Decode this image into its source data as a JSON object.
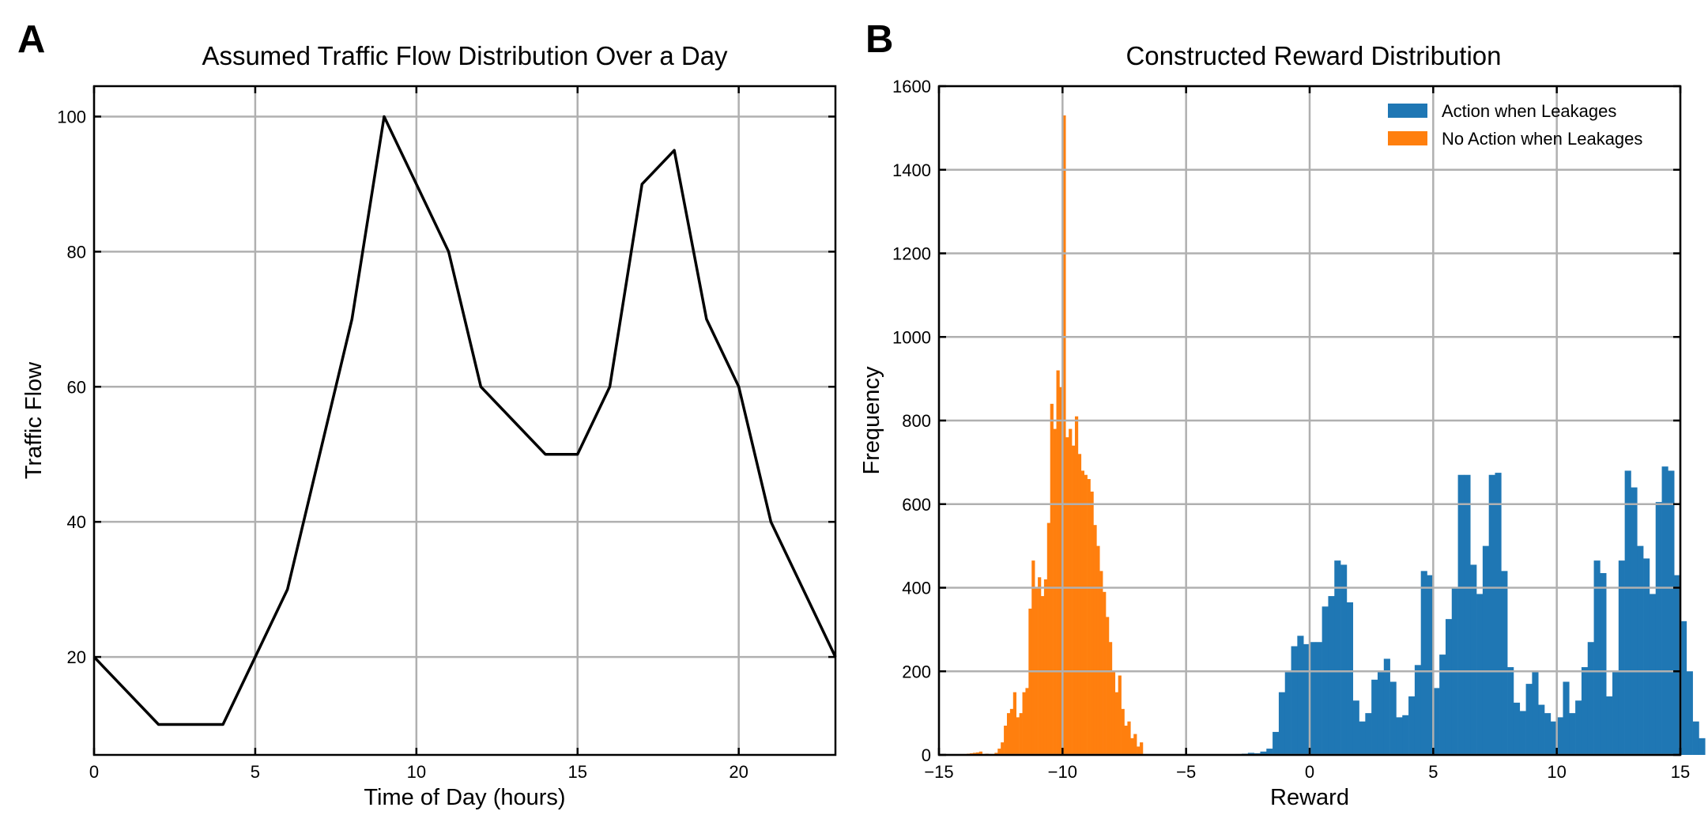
{
  "chart_data": [
    {
      "panel": "A",
      "type": "line",
      "title": "Assumed Traffic Flow Distribution Over a Day",
      "xlabel": "Time of Day (hours)",
      "ylabel": "Traffic Flow",
      "xlim": [
        0,
        23
      ],
      "ylim": [
        5.5,
        104.5
      ],
      "xticks": [
        0,
        5,
        10,
        15,
        20
      ],
      "yticks": [
        20,
        40,
        60,
        80,
        100
      ],
      "grid": true,
      "line_color": "#000000",
      "x": [
        0,
        1,
        2,
        3,
        4,
        5,
        6,
        7,
        8,
        9,
        10,
        11,
        12,
        13,
        14,
        15,
        16,
        17,
        18,
        19,
        20,
        21,
        22,
        23
      ],
      "y": [
        20,
        15,
        10,
        10,
        10,
        20,
        30,
        50,
        70,
        100,
        90,
        80,
        60,
        55,
        50,
        50,
        60,
        90,
        95,
        70,
        60,
        40,
        30,
        20
      ]
    },
    {
      "panel": "B",
      "type": "bar",
      "subtype": "histogram",
      "title": "Constructed Reward Distribution",
      "xlabel": "Reward",
      "ylabel": "Frequency",
      "xlim": [
        -15,
        15
      ],
      "ylim": [
        0,
        1600
      ],
      "xticks": [
        -15,
        -10,
        -5,
        0,
        5,
        10,
        15
      ],
      "xtick_labels": [
        "−15",
        "−10",
        "−5",
        "0",
        "5",
        "10",
        "15"
      ],
      "yticks": [
        0,
        200,
        400,
        600,
        800,
        1000,
        1200,
        1400,
        1600
      ],
      "grid": true,
      "legend_position": "top-right",
      "series": [
        {
          "name": "Action when Leakages",
          "color": "#1f77b4",
          "bin_start": -3.0,
          "bin_width": 0.25,
          "values": [
            2,
            3,
            5,
            4,
            8,
            15,
            55,
            150,
            200,
            260,
            285,
            265,
            270,
            270,
            355,
            380,
            465,
            455,
            365,
            130,
            80,
            100,
            180,
            200,
            230,
            175,
            90,
            95,
            140,
            215,
            440,
            430,
            160,
            240,
            325,
            400,
            670,
            670,
            455,
            385,
            500,
            670,
            675,
            440,
            210,
            125,
            105,
            170,
            200,
            120,
            100,
            80,
            90,
            175,
            100,
            130,
            210,
            270,
            465,
            435,
            140,
            200,
            465,
            680,
            640,
            500,
            470,
            385,
            605,
            690,
            680,
            430,
            320,
            200,
            80,
            40
          ]
        },
        {
          "name": "No Action when Leakages",
          "color": "#ff7f0e",
          "bin_start": -14.25,
          "bin_width": 0.125,
          "values": [
            1,
            2,
            2,
            3,
            4,
            5,
            6,
            8,
            2,
            3,
            2,
            1,
            5,
            15,
            30,
            70,
            100,
            110,
            150,
            90,
            100,
            150,
            160,
            350,
            465,
            400,
            425,
            380,
            420,
            555,
            840,
            780,
            920,
            880,
            1530,
            760,
            780,
            740,
            810,
            720,
            680,
            670,
            660,
            630,
            550,
            500,
            440,
            390,
            330,
            270,
            200,
            150,
            190,
            110,
            70,
            80,
            40,
            50,
            20,
            30
          ]
        }
      ]
    }
  ],
  "panels": {
    "a_letter": "A",
    "b_letter": "B"
  }
}
